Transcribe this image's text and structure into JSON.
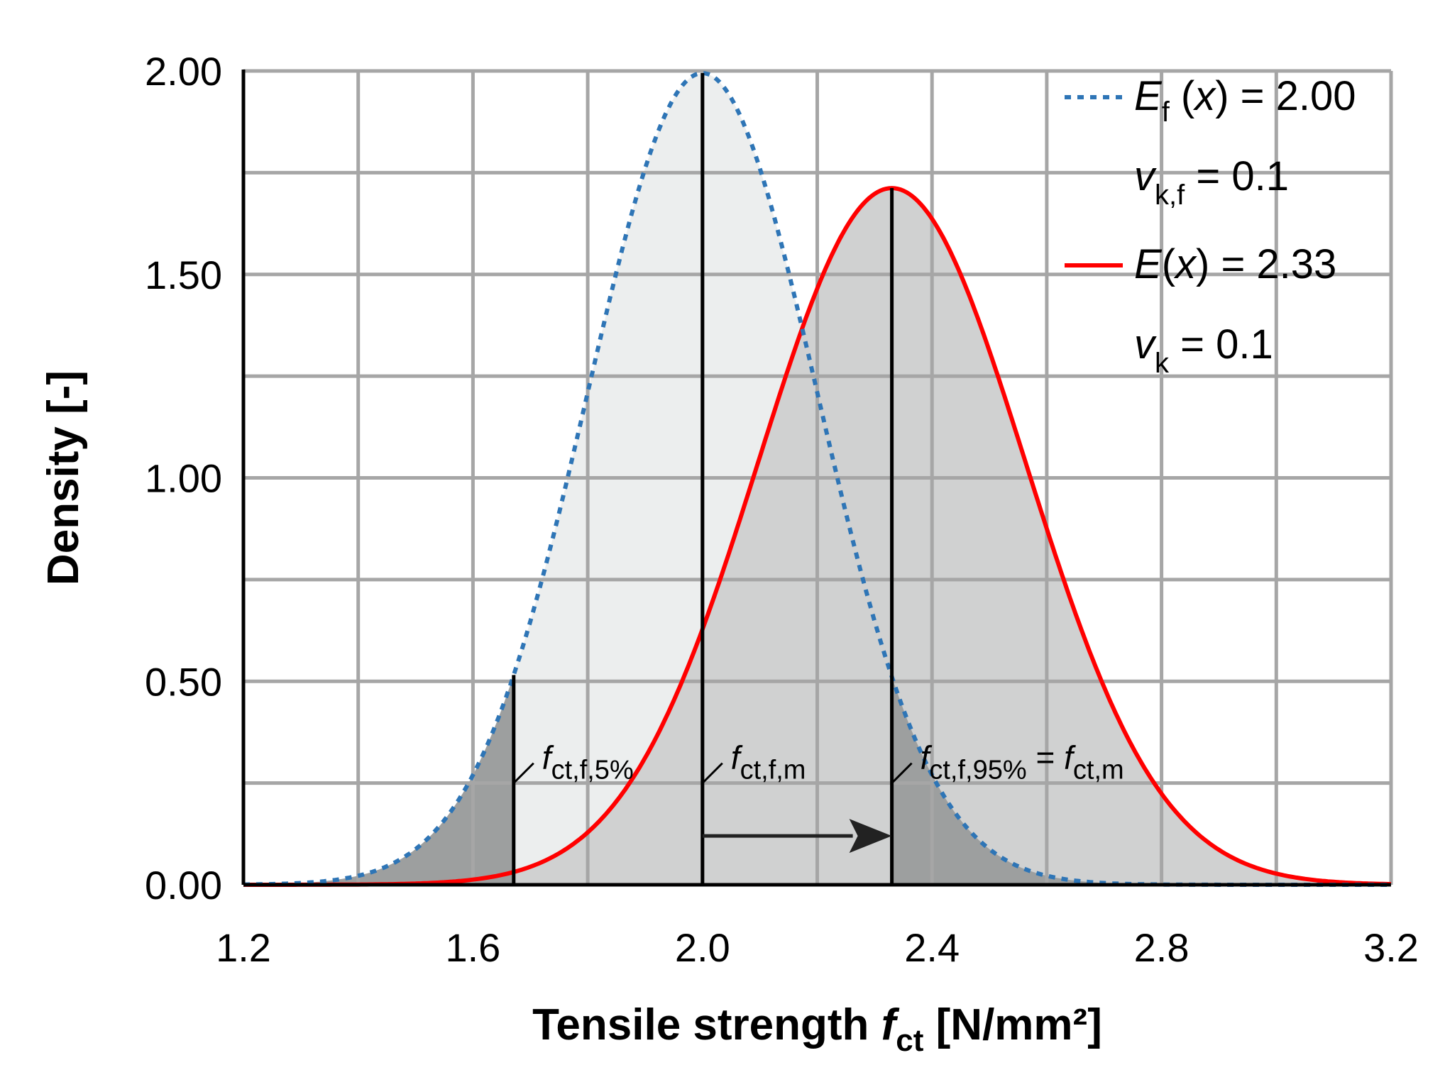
{
  "chart_data": {
    "type": "line",
    "title": "",
    "xlabel": "Tensile strength",
    "xlabel_symbol": "f",
    "xlabel_symbol_sub": "ct",
    "xlabel_unit": "[N/mm²]",
    "ylabel": "Density [-]",
    "xlim": [
      1.2,
      3.2
    ],
    "ylim": [
      0,
      2
    ],
    "x_ticks": [
      1.2,
      1.6,
      2.0,
      2.4,
      2.8,
      3.2
    ],
    "x_tick_labels": [
      "1.2",
      "1.6",
      "2.0",
      "2.4",
      "2.8",
      "3.2"
    ],
    "y_ticks": [
      0,
      0.5,
      1,
      1.5,
      2
    ],
    "y_tick_labels": [
      "0.00",
      "0.50",
      "1.00",
      "1.50",
      "2.00"
    ],
    "x_grid_step": 0.2,
    "y_grid_step": 0.25,
    "grid": true,
    "legend_position": "top-right",
    "series": [
      {
        "name": "Ef (x) = 2.00",
        "distribution": "normal",
        "mean": 2.0,
        "cov": 0.1,
        "style": "dotted",
        "color": "#2E75B6",
        "fill_color": "#ECEEEE",
        "tail_fill_color": "#9D9F9F",
        "legend": {
          "symbol": "E",
          "sub": "f",
          "args": " (",
          "var": "x",
          "close": ")",
          "value": " = 2.00",
          "param_symbol": "v",
          "param_sub": "k,f",
          "param_value": " = 0.1"
        }
      },
      {
        "name": "E(x) = 2.33",
        "distribution": "normal",
        "mean": 2.33,
        "cov": 0.1,
        "style": "solid",
        "color": "#FF0000",
        "fill_color": "#D0D1D1",
        "tail_fill_color": "#9D9F9F",
        "legend": {
          "symbol": "E",
          "sub": "",
          "args": "(",
          "var": "x",
          "close": ")",
          "value": " = 2.33",
          "param_symbol": "v",
          "param_sub": "k",
          "param_value": " = 0.1"
        }
      }
    ],
    "markers": [
      {
        "name": "fct,f,5%",
        "x": 1.671,
        "top_series": 0,
        "label_f": "f",
        "label_sub": "ct,f,5%",
        "label_rest_f": "",
        "label_rest_sub": ""
      },
      {
        "name": "fct,f,m",
        "x": 2.0,
        "top_series": 0,
        "label_f": "f",
        "label_sub": "ct,f,m",
        "label_rest_f": "",
        "label_rest_sub": ""
      },
      {
        "name": "fct,f,95% = fct,m",
        "x": 2.33,
        "top_series": 1,
        "label_f": "f",
        "label_sub": "ct,f,95%",
        "label_rest_f": " = f",
        "label_rest_sub": "ct,m"
      }
    ],
    "shift_arrow": {
      "from_x": 2.0,
      "to_x": 2.33,
      "y": 0.12
    },
    "label_leader_y": 0.25
  }
}
